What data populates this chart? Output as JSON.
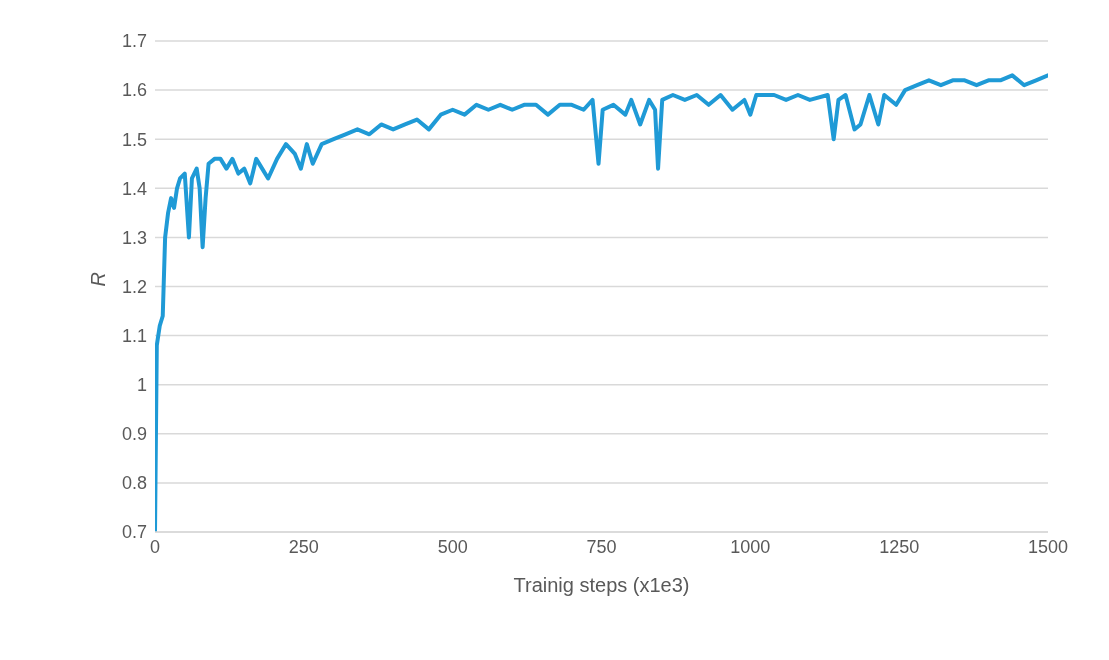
{
  "chart_data": {
    "type": "line",
    "xlabel": "Trainig steps (x1e3)",
    "ylabel": "R",
    "xlim": [
      0,
      1500
    ],
    "xticks": [
      0,
      250,
      500,
      750,
      1000,
      1250,
      1500
    ],
    "ylim": [
      0.7,
      1.7
    ],
    "yticks": [
      0.7,
      0.8,
      0.9,
      1,
      1.1,
      1.2,
      1.3,
      1.4,
      1.5,
      1.6,
      1.7
    ],
    "grid": "y",
    "marker": "none",
    "line_style": "solid",
    "series": [
      {
        "color": "#1f9ad6",
        "x": [
          0,
          3,
          8,
          13,
          17,
          22,
          27,
          32,
          37,
          42,
          50,
          57,
          62,
          70,
          75,
          80,
          85,
          90,
          100,
          110,
          120,
          130,
          140,
          150,
          160,
          170,
          180,
          190,
          205,
          220,
          235,
          245,
          255,
          265,
          280,
          300,
          320,
          340,
          360,
          380,
          400,
          420,
          440,
          460,
          480,
          500,
          520,
          540,
          560,
          580,
          600,
          620,
          640,
          660,
          680,
          700,
          720,
          735,
          745,
          752,
          770,
          790,
          800,
          815,
          830,
          840,
          845,
          852,
          870,
          890,
          910,
          930,
          950,
          970,
          990,
          1000,
          1010,
          1040,
          1060,
          1080,
          1100,
          1130,
          1140,
          1148,
          1160,
          1175,
          1185,
          1200,
          1215,
          1225,
          1245,
          1260,
          1280,
          1300,
          1320,
          1340,
          1360,
          1380,
          1400,
          1420,
          1440,
          1460,
          1480,
          1500
        ],
        "values": [
          0.7,
          1.08,
          1.12,
          1.14,
          1.3,
          1.35,
          1.38,
          1.36,
          1.4,
          1.42,
          1.43,
          1.3,
          1.42,
          1.44,
          1.4,
          1.28,
          1.38,
          1.45,
          1.46,
          1.46,
          1.44,
          1.46,
          1.43,
          1.44,
          1.41,
          1.46,
          1.44,
          1.42,
          1.46,
          1.49,
          1.47,
          1.44,
          1.49,
          1.45,
          1.49,
          1.5,
          1.51,
          1.52,
          1.51,
          1.53,
          1.52,
          1.53,
          1.54,
          1.52,
          1.55,
          1.56,
          1.55,
          1.57,
          1.56,
          1.57,
          1.56,
          1.57,
          1.57,
          1.55,
          1.57,
          1.57,
          1.56,
          1.58,
          1.45,
          1.56,
          1.57,
          1.55,
          1.58,
          1.53,
          1.58,
          1.56,
          1.44,
          1.58,
          1.59,
          1.58,
          1.59,
          1.57,
          1.59,
          1.56,
          1.58,
          1.55,
          1.59,
          1.59,
          1.58,
          1.59,
          1.58,
          1.59,
          1.5,
          1.58,
          1.59,
          1.52,
          1.53,
          1.59,
          1.53,
          1.59,
          1.57,
          1.6,
          1.61,
          1.62,
          1.61,
          1.62,
          1.62,
          1.61,
          1.62,
          1.62,
          1.63,
          1.61,
          1.62,
          1.63
        ]
      }
    ]
  }
}
